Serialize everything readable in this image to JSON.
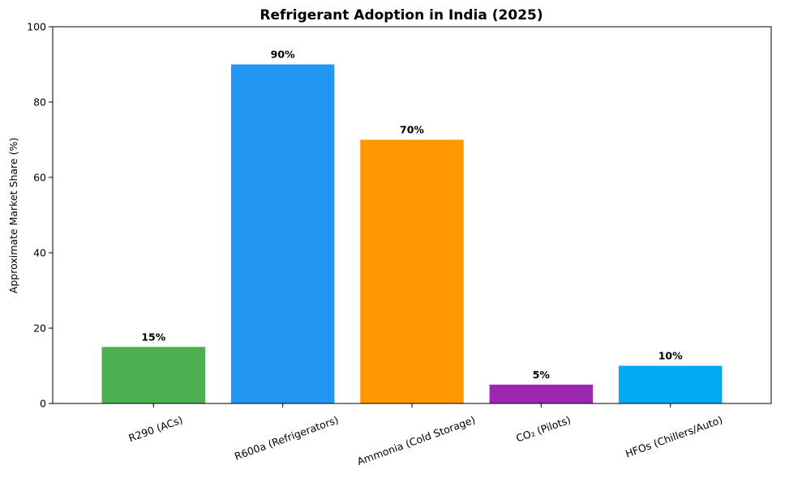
{
  "chart_data": {
    "type": "bar",
    "title": "Refrigerant Adoption in India (2025)",
    "xlabel": "",
    "ylabel": "Approximate Market Share (%)",
    "ylim": [
      0,
      100
    ],
    "yticks": [
      0,
      20,
      40,
      60,
      80,
      100
    ],
    "grid": false,
    "categories": [
      "R290 (ACs)",
      "R600a (Refrigerators)",
      "Ammonia (Cold Storage)",
      "CO₂ (Pilots)",
      "HFOs (Chillers/Auto)"
    ],
    "values": [
      15,
      90,
      70,
      5,
      10
    ],
    "data_labels": [
      "15%",
      "90%",
      "70%",
      "5%",
      "10%"
    ],
    "colors": [
      "#4caf50",
      "#2196f3",
      "#ff9800",
      "#9c27b0",
      "#03a9f4"
    ]
  }
}
